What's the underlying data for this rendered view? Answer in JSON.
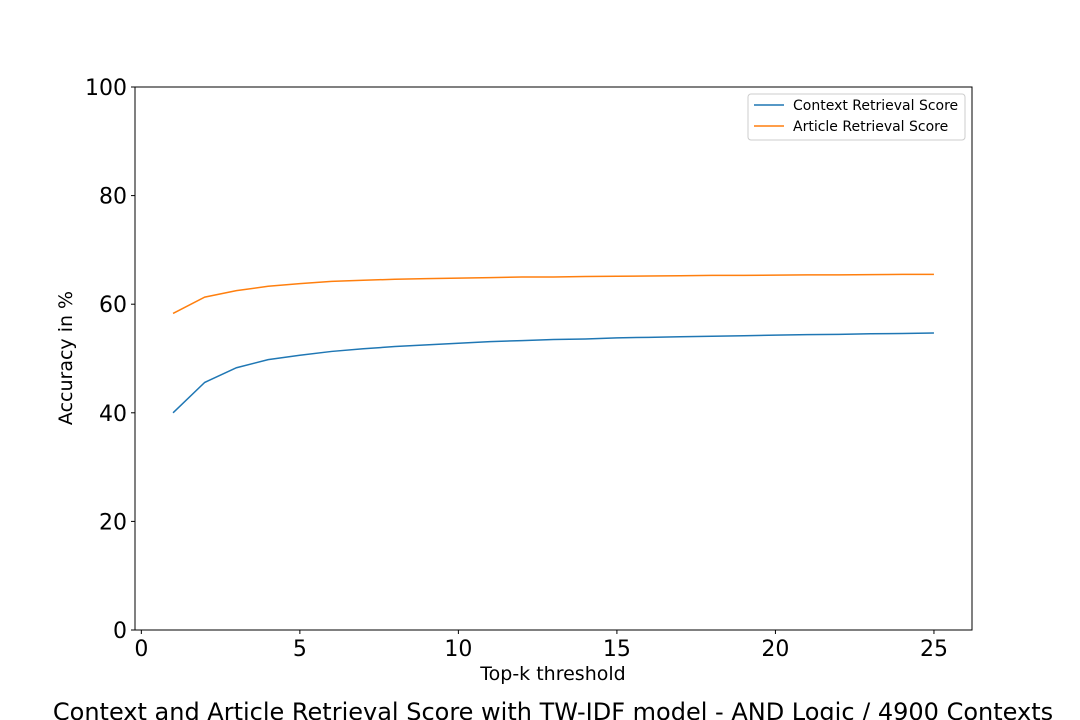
{
  "chart_data": {
    "type": "line",
    "title": "Context and Article Retrieval Score with TW-IDF model - AND Logic / 4900 Contexts",
    "xlabel": "Top-k threshold",
    "ylabel": "Accuracy in %",
    "xlim": [
      -0.2,
      26.2
    ],
    "ylim": [
      0,
      100
    ],
    "xticks": [
      0,
      5,
      10,
      15,
      20,
      25
    ],
    "yticks": [
      0,
      20,
      40,
      60,
      80,
      100
    ],
    "grid": false,
    "legend_position": "top-right",
    "x": [
      1,
      2,
      3,
      4,
      5,
      6,
      7,
      8,
      9,
      10,
      11,
      12,
      13,
      14,
      15,
      16,
      17,
      18,
      19,
      20,
      21,
      22,
      23,
      24,
      25
    ],
    "series": [
      {
        "name": "Context Retrieval Score",
        "color": "#1f77b4",
        "values": [
          40.0,
          45.6,
          48.3,
          49.8,
          50.6,
          51.3,
          51.8,
          52.2,
          52.5,
          52.8,
          53.1,
          53.3,
          53.5,
          53.6,
          53.8,
          53.9,
          54.0,
          54.1,
          54.2,
          54.3,
          54.4,
          54.45,
          54.55,
          54.6,
          54.7
        ]
      },
      {
        "name": "Article Retrieval Score",
        "color": "#ff7f0e",
        "values": [
          58.3,
          61.3,
          62.5,
          63.3,
          63.8,
          64.2,
          64.4,
          64.6,
          64.7,
          64.8,
          64.9,
          65.0,
          65.0,
          65.1,
          65.15,
          65.2,
          65.25,
          65.3,
          65.3,
          65.35,
          65.4,
          65.4,
          65.45,
          65.5,
          65.5
        ]
      }
    ]
  }
}
